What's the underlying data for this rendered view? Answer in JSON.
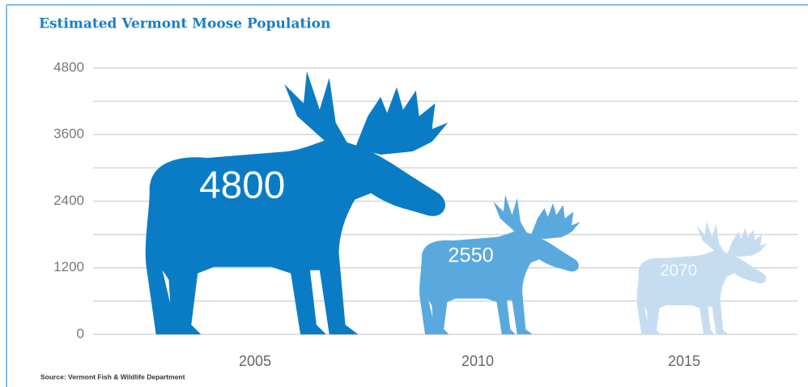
{
  "chart_data": {
    "type": "pictograph",
    "title": "Estimated Vermont Moose Population",
    "source": "Source: Vermont Fish & Wildlife Department",
    "categories": [
      "2005",
      "2010",
      "2015"
    ],
    "values": [
      4800,
      2550,
      2070
    ],
    "colors": [
      "#0a7cc6",
      "#5aa9de",
      "#c6ddf1"
    ],
    "ylim": [
      0,
      4800
    ],
    "yticks": [
      0,
      1200,
      2400,
      3600,
      4800
    ],
    "minor_yticks": [
      600,
      1800,
      3000,
      4200
    ],
    "grid": true
  }
}
